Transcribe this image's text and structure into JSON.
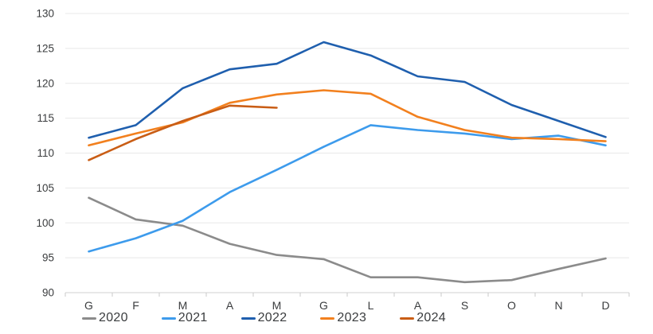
{
  "chart_data": {
    "type": "line",
    "x_categories": [
      "G",
      "F",
      "M",
      "A",
      "M",
      "G",
      "L",
      "A",
      "S",
      "O",
      "N",
      "D"
    ],
    "y_ticks": [
      90,
      95,
      100,
      105,
      110,
      115,
      120,
      125,
      130
    ],
    "ylim": [
      90,
      130
    ],
    "grid": "horizontal",
    "legend_position": "bottom",
    "series": [
      {
        "name": "2020",
        "color": "#8b8b8b",
        "values": [
          103.6,
          100.5,
          99.6,
          97.0,
          95.4,
          94.8,
          92.2,
          92.2,
          91.5,
          91.8,
          93.4,
          94.9
        ]
      },
      {
        "name": "2021",
        "color": "#3d9bec",
        "values": [
          95.9,
          97.8,
          100.3,
          104.4,
          107.6,
          110.9,
          114.0,
          113.3,
          112.8,
          112.0,
          112.5,
          111.1
        ]
      },
      {
        "name": "2022",
        "color": "#1f5fae",
        "values": [
          112.2,
          114.0,
          119.3,
          122.0,
          122.8,
          125.9,
          124.0,
          121.0,
          120.2,
          116.9,
          114.6,
          112.3
        ]
      },
      {
        "name": "2023",
        "color": "#f2801e",
        "values": [
          111.1,
          112.8,
          114.4,
          117.2,
          118.4,
          119.0,
          118.5,
          115.2,
          113.3,
          112.2,
          112.0,
          111.7
        ]
      },
      {
        "name": "2024",
        "color": "#c95d15",
        "values": [
          109.0,
          112.0,
          114.6,
          116.8,
          116.5,
          null,
          null,
          null,
          null,
          null,
          null,
          null
        ]
      }
    ]
  }
}
